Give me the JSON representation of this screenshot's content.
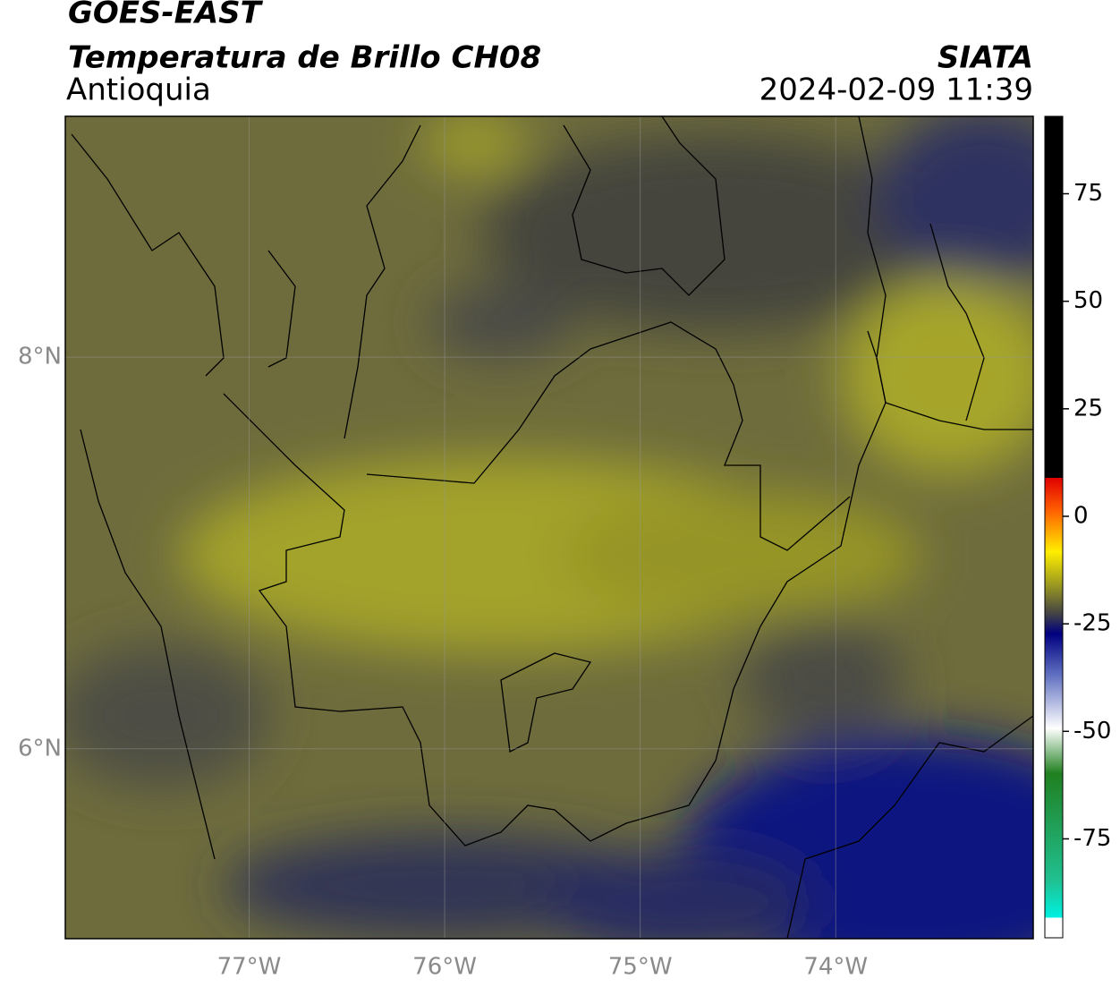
{
  "header": {
    "title": "GOES-EAST",
    "subtitle": "Temperatura de Brillo CH08",
    "region": "Antioquia",
    "source": "SIATA",
    "datetime": "2024-02-09 11:39"
  },
  "map": {
    "xlim": [
      -77.94,
      -72.99
    ],
    "ylim": [
      5.03,
      9.23
    ],
    "xticks": [
      {
        "value": -77,
        "label": "77°W"
      },
      {
        "value": -76,
        "label": "76°W"
      },
      {
        "value": -75,
        "label": "75°W"
      },
      {
        "value": -74,
        "label": "74°W"
      }
    ],
    "yticks": [
      {
        "value": 8,
        "label": "8°N"
      },
      {
        "value": 6,
        "label": "6°N"
      }
    ],
    "grid": true
  },
  "colorbar": {
    "lim": [
      -98,
      93
    ],
    "ticks": [
      75,
      50,
      25,
      0,
      -25,
      -50,
      -75
    ]
  }
}
